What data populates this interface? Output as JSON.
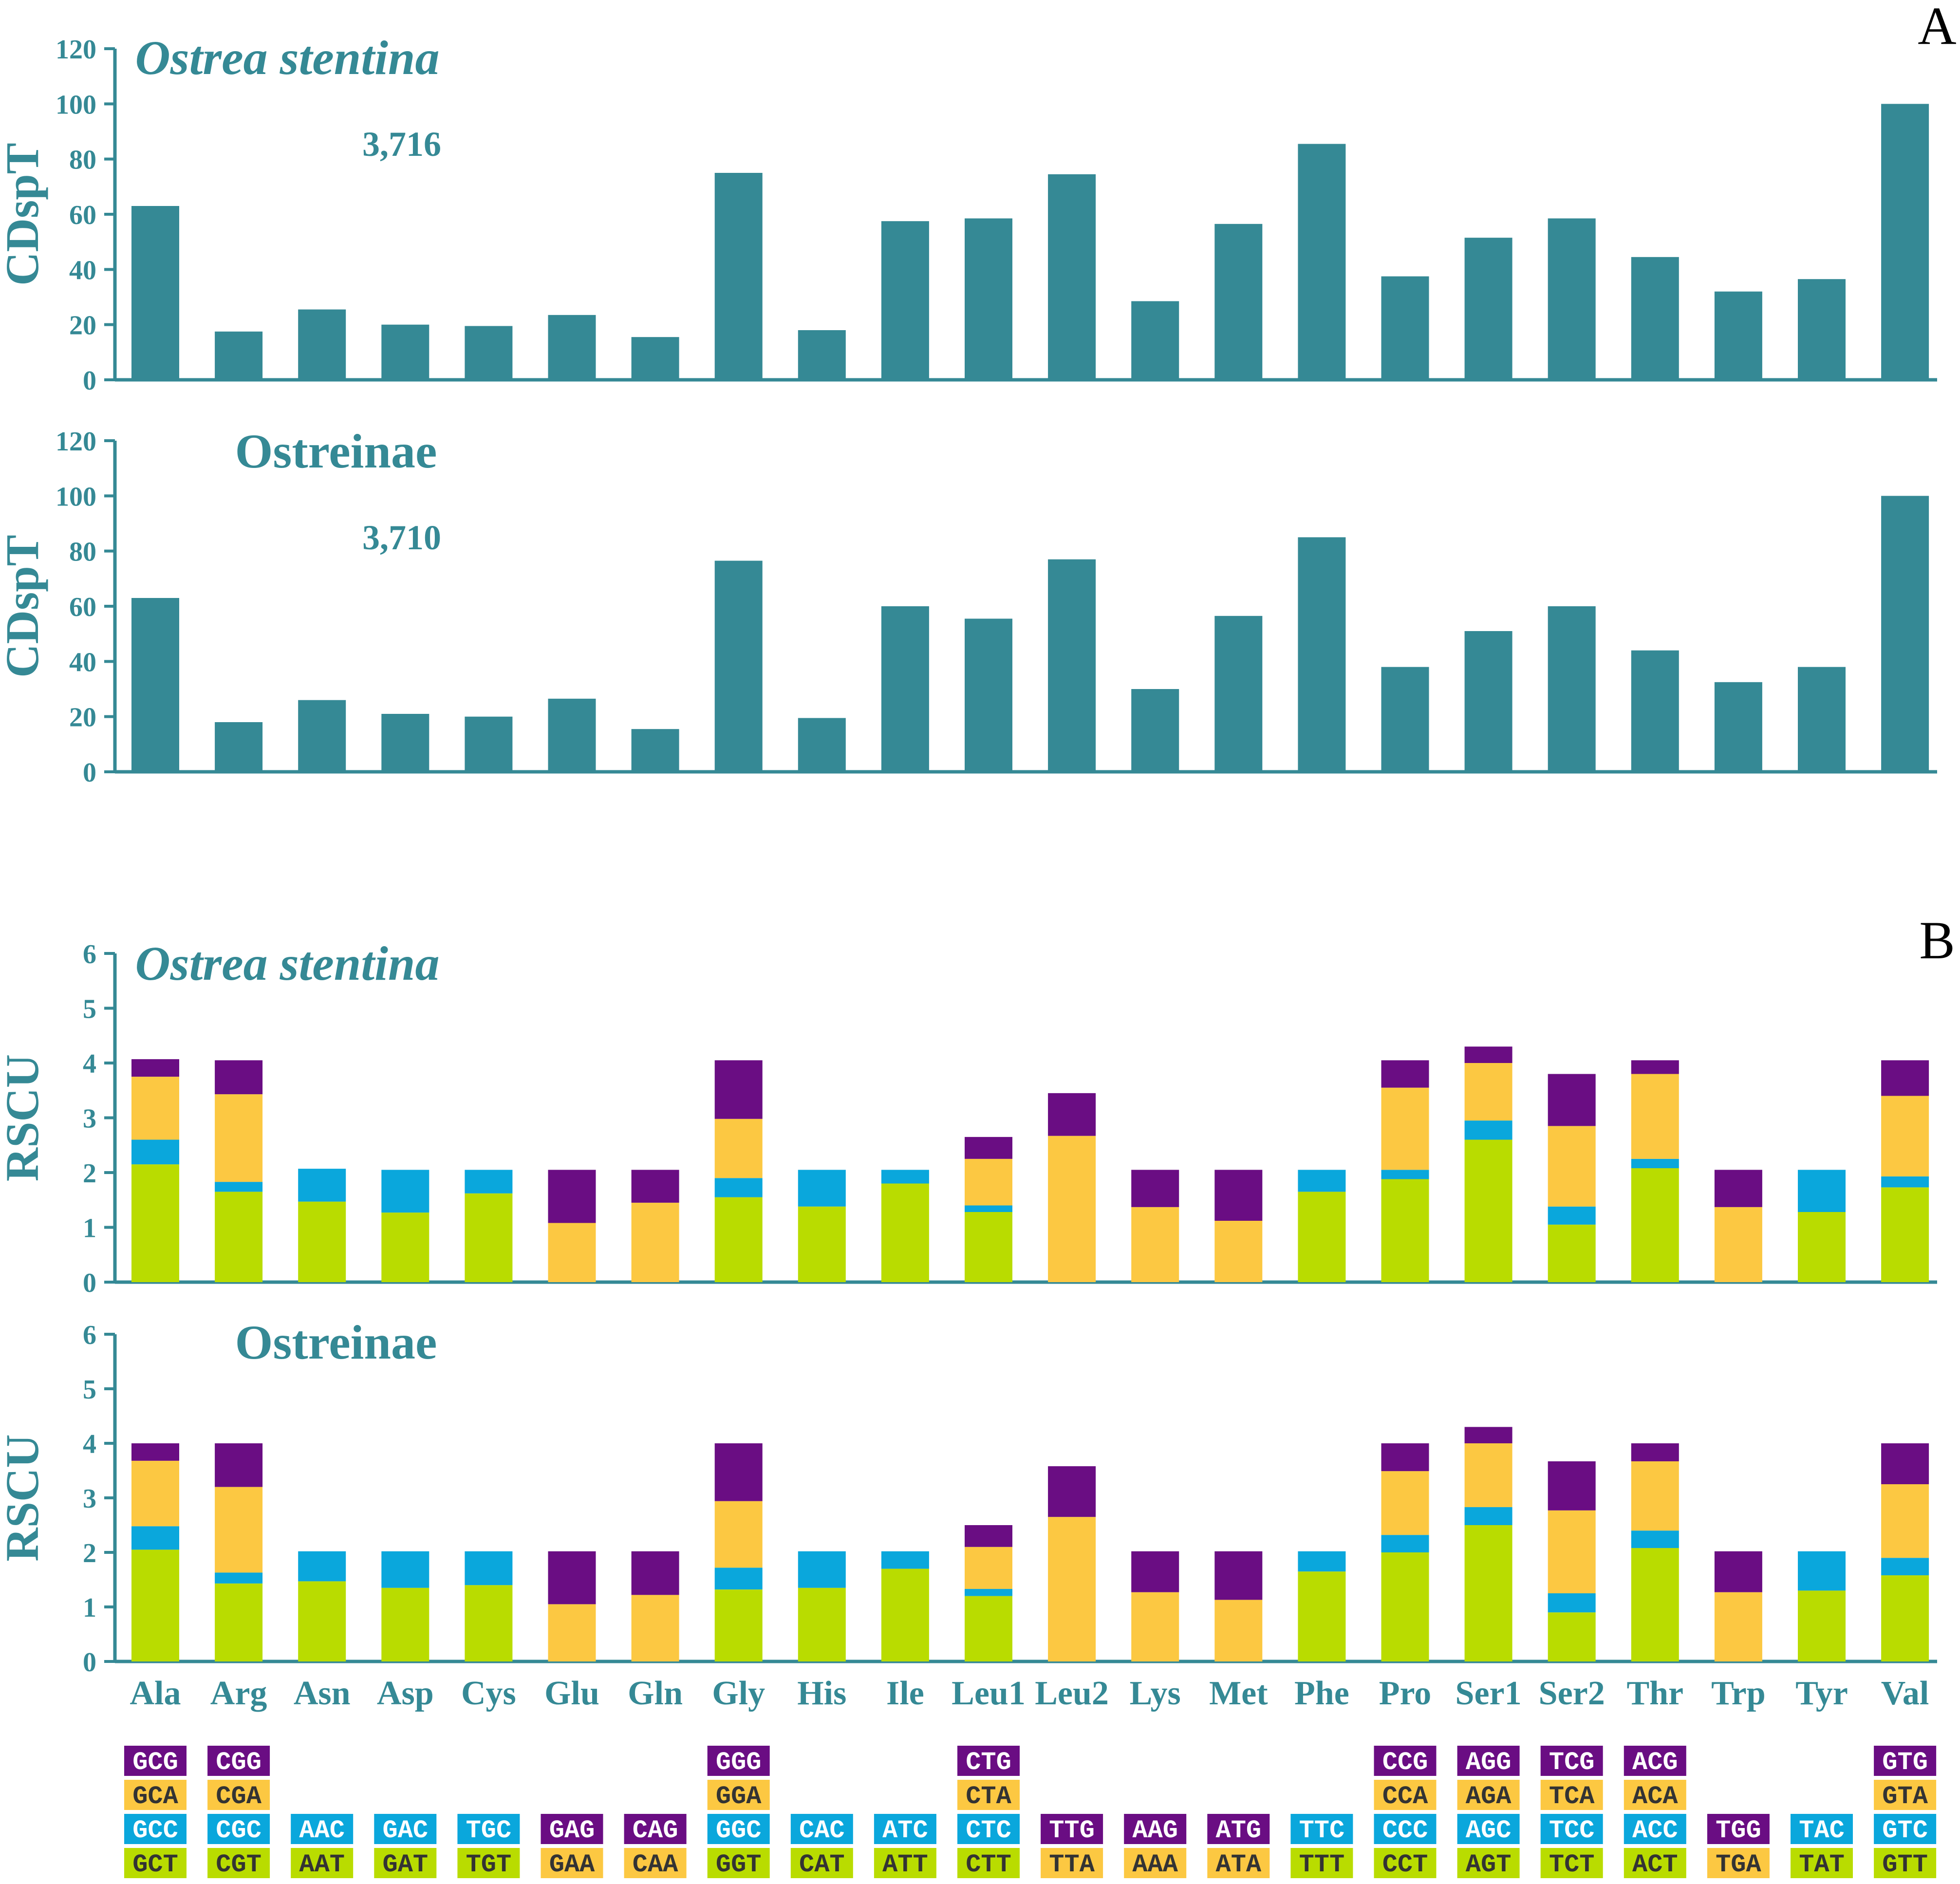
{
  "colors": {
    "bar_main": "#358995",
    "axis_text": "#358995",
    "title_text": "#358995",
    "panel_letter": "#000000",
    "codon_green": "#b9dc00",
    "codon_blue": "#0aa7dc",
    "codon_yellow": "#fcc842",
    "codon_purple": "#6a0d83",
    "codon_text_dark": "#333333",
    "codon_text_light": "#ffffff"
  },
  "panel_labels": {
    "a": "A",
    "b": "B"
  },
  "amino_acids": [
    "Ala",
    "Arg",
    "Asn",
    "Asp",
    "Cys",
    "Glu",
    "Gln",
    "Gly",
    "His",
    "Ile",
    "Leu1",
    "Leu2",
    "Lys",
    "Met",
    "Phe",
    "Pro",
    "Ser1",
    "Ser2",
    "Thr",
    "Trp",
    "Tyr",
    "Val"
  ],
  "chart_data": [
    {
      "id": "cdspt_ostrea",
      "type": "bar",
      "title": "Ostrea stentina",
      "title_style": "italic",
      "annotation": "3,716",
      "ylabel": "CDspT",
      "ylim": [
        0,
        120
      ],
      "yticks": [
        "0",
        "20",
        "40",
        "60",
        "80",
        "100",
        "120"
      ],
      "values": [
        63,
        17.5,
        25.5,
        20,
        19.5,
        23.5,
        15.5,
        75,
        18,
        57.5,
        58.5,
        74.5,
        28.5,
        56.5,
        85.5,
        37.5,
        51.5,
        58.5,
        44.5,
        32,
        36.5,
        100
      ]
    },
    {
      "id": "cdspt_ostreinae",
      "type": "bar",
      "title": "Ostreinae",
      "title_style": "normal",
      "annotation": "3,710",
      "ylabel": "CDspT",
      "ylim": [
        0,
        120
      ],
      "yticks": [
        "0",
        "20",
        "40",
        "60",
        "80",
        "100",
        "120"
      ],
      "values": [
        63,
        18,
        26,
        21,
        20,
        26.5,
        15.5,
        76.5,
        19.5,
        60,
        55.5,
        77,
        30,
        56.5,
        85,
        38,
        51,
        60,
        44,
        32.5,
        38,
        100
      ]
    },
    {
      "id": "rscu_ostrea",
      "type": "stacked_bar",
      "title": "Ostrea stentina",
      "title_style": "italic",
      "ylabel": "RSCU",
      "ylim": [
        0,
        6
      ],
      "yticks": [
        "0",
        "1",
        "2",
        "3",
        "4",
        "5",
        "6"
      ],
      "stacks": [
        [
          2.15,
          0.45,
          1.15,
          0.32
        ],
        [
          1.65,
          0.18,
          1.6,
          0.62
        ],
        [
          1.47,
          0.6
        ],
        [
          1.27,
          0.78
        ],
        [
          1.62,
          0.43
        ],
        [
          1.08,
          0.97
        ],
        [
          1.45,
          0.6
        ],
        [
          1.55,
          0.35,
          1.08,
          1.07
        ],
        [
          1.38,
          0.67
        ],
        [
          1.8,
          0.25
        ],
        [
          1.28,
          0.12,
          0.85,
          0.4
        ],
        [
          2.67,
          0.78
        ],
        [
          1.37,
          0.68
        ],
        [
          1.12,
          0.93
        ],
        [
          1.65,
          0.4
        ],
        [
          1.88,
          0.17,
          1.5,
          0.5
        ],
        [
          2.6,
          0.35,
          1.05,
          0.3
        ],
        [
          1.05,
          0.33,
          1.47,
          0.95
        ],
        [
          2.08,
          0.17,
          1.55,
          0.25
        ],
        [
          1.37,
          0.68
        ],
        [
          1.28,
          0.77
        ],
        [
          1.73,
          0.2,
          1.47,
          0.65
        ]
      ]
    },
    {
      "id": "rscu_ostreinae",
      "type": "stacked_bar",
      "title": "Ostreinae",
      "title_style": "normal",
      "ylabel": "RSCU",
      "ylim": [
        0,
        6
      ],
      "yticks": [
        "0",
        "1",
        "2",
        "3",
        "4",
        "5",
        "6"
      ],
      "stacks": [
        [
          2.05,
          0.43,
          1.2,
          0.32
        ],
        [
          1.43,
          0.2,
          1.57,
          0.8
        ],
        [
          1.47,
          0.55
        ],
        [
          1.35,
          0.67
        ],
        [
          1.4,
          0.62
        ],
        [
          1.05,
          0.97
        ],
        [
          1.22,
          0.8
        ],
        [
          1.32,
          0.4,
          1.22,
          1.06
        ],
        [
          1.35,
          0.67
        ],
        [
          1.7,
          0.32
        ],
        [
          1.2,
          0.13,
          0.77,
          0.4
        ],
        [
          2.65,
          0.93
        ],
        [
          1.27,
          0.75
        ],
        [
          1.13,
          0.89
        ],
        [
          1.65,
          0.37
        ],
        [
          2.0,
          0.32,
          1.17,
          0.51
        ],
        [
          2.5,
          0.33,
          1.17,
          0.3
        ],
        [
          0.9,
          0.35,
          1.52,
          0.9
        ],
        [
          2.08,
          0.32,
          1.27,
          0.33
        ],
        [
          1.27,
          0.75
        ],
        [
          1.3,
          0.72
        ],
        [
          1.58,
          0.32,
          1.35,
          0.75
        ]
      ]
    }
  ],
  "codons": [
    [
      "GCT",
      "GCC",
      "GCA",
      "GCG"
    ],
    [
      "CGT",
      "CGC",
      "CGA",
      "CGG"
    ],
    [
      "AAT",
      "AAC"
    ],
    [
      "GAT",
      "GAC"
    ],
    [
      "TGT",
      "TGC"
    ],
    [
      "GAA",
      "GAG"
    ],
    [
      "CAA",
      "CAG"
    ],
    [
      "GGT",
      "GGC",
      "GGA",
      "GGG"
    ],
    [
      "CAT",
      "CAC"
    ],
    [
      "ATT",
      "ATC"
    ],
    [
      "CTT",
      "CTC",
      "CTA",
      "CTG"
    ],
    [
      "TTA",
      "TTG"
    ],
    [
      "AAA",
      "AAG"
    ],
    [
      "ATA",
      "ATG"
    ],
    [
      "TTT",
      "TTC"
    ],
    [
      "CCT",
      "CCC",
      "CCA",
      "CCG"
    ],
    [
      "AGT",
      "AGC",
      "AGA",
      "AGG"
    ],
    [
      "TCT",
      "TCC",
      "TCA",
      "TCG"
    ],
    [
      "ACT",
      "ACC",
      "ACA",
      "ACG"
    ],
    [
      "TGA",
      "TGG"
    ],
    [
      "TAT",
      "TAC"
    ],
    [
      "GTT",
      "GTC",
      "GTA",
      "GTG"
    ]
  ],
  "codon_colors": [
    [
      "green",
      "blue",
      "yellow",
      "purple"
    ],
    [
      "green",
      "blue",
      "yellow",
      "purple"
    ],
    [
      "green",
      "blue"
    ],
    [
      "green",
      "blue"
    ],
    [
      "green",
      "blue"
    ],
    [
      "yellow",
      "purple"
    ],
    [
      "yellow",
      "purple"
    ],
    [
      "green",
      "blue",
      "yellow",
      "purple"
    ],
    [
      "green",
      "blue"
    ],
    [
      "green",
      "blue"
    ],
    [
      "green",
      "blue",
      "yellow",
      "purple"
    ],
    [
      "yellow",
      "purple"
    ],
    [
      "yellow",
      "purple"
    ],
    [
      "yellow",
      "purple"
    ],
    [
      "green",
      "blue"
    ],
    [
      "green",
      "blue",
      "yellow",
      "purple"
    ],
    [
      "green",
      "blue",
      "yellow",
      "purple"
    ],
    [
      "green",
      "blue",
      "yellow",
      "purple"
    ],
    [
      "green",
      "blue",
      "yellow",
      "purple"
    ],
    [
      "yellow",
      "purple"
    ],
    [
      "green",
      "blue"
    ],
    [
      "green",
      "blue",
      "yellow",
      "purple"
    ]
  ]
}
